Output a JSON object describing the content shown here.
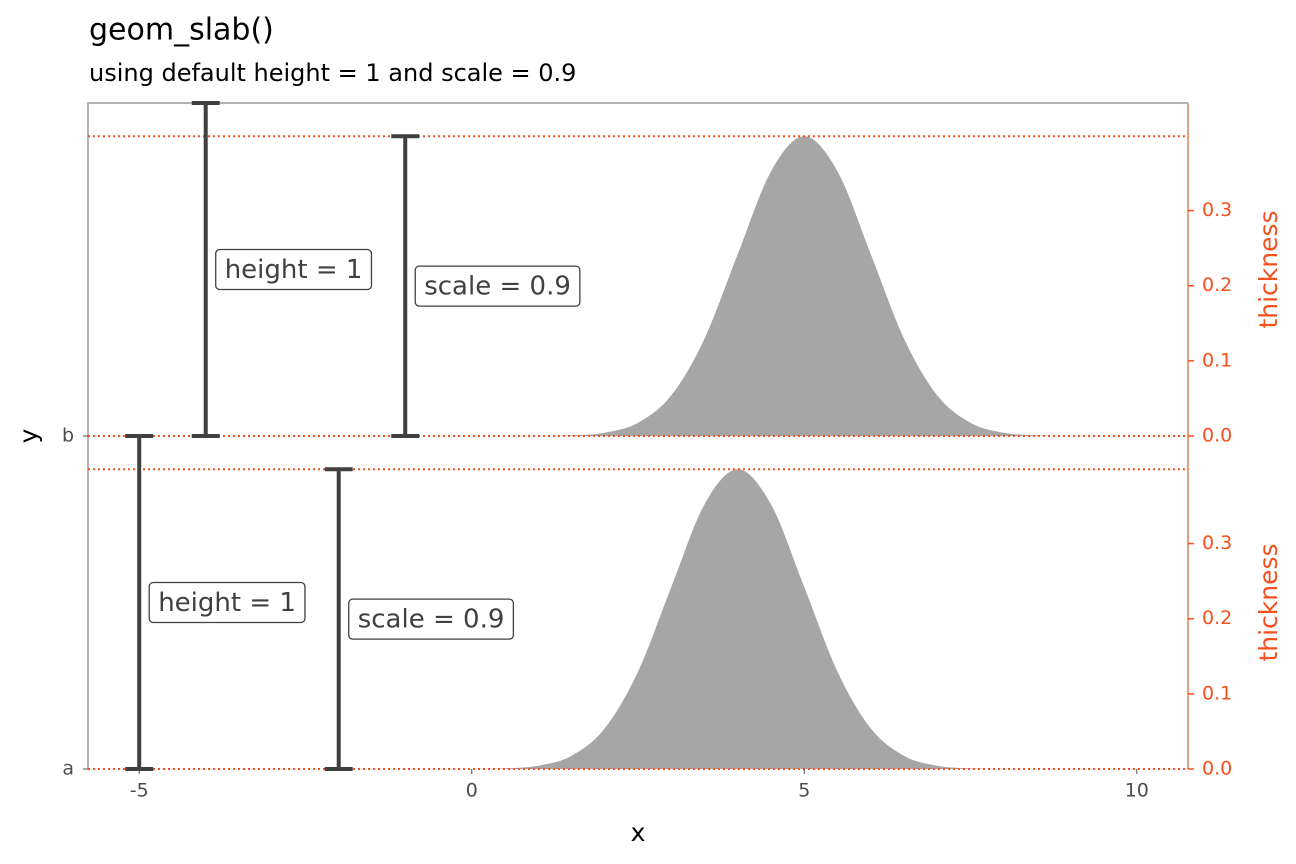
{
  "chart_data": {
    "type": "slab",
    "title": "geom_slab()",
    "subtitle": "using default height = 1 and scale = 0.9",
    "x_label": "x",
    "y_label": "y",
    "y2_label": "thickness",
    "categories": [
      "a",
      "b"
    ],
    "x": [
      0,
      0.5,
      1,
      1.5,
      2,
      2.5,
      3,
      3.5,
      4,
      4.5,
      5,
      5.5,
      6,
      6.5,
      7,
      7.5,
      8,
      8.5,
      9,
      9.5,
      10
    ],
    "series": [
      {
        "color": "#a6a6a6",
        "values": [
          0.0001,
          0.0009,
          0.0044,
          0.0175,
          0.054,
          0.1295,
          0.242,
          0.3521,
          0.3989,
          0.3521,
          0.242,
          0.1295,
          0.054,
          0.0175,
          0.0044,
          0.0009,
          0.0001,
          0,
          0,
          0,
          0
        ]
      },
      {
        "color": "#a6a6a6",
        "values": [
          0,
          0,
          0.0001,
          0.0009,
          0.0044,
          0.0175,
          0.054,
          0.1295,
          0.242,
          0.3521,
          0.3989,
          0.3521,
          0.242,
          0.1295,
          0.054,
          0.0175,
          0.0044,
          0.0009,
          0.0001,
          0,
          0
        ]
      }
    ],
    "xlim": [
      -5.77,
      10.77
    ],
    "xticks": [
      -5,
      0,
      5,
      10
    ],
    "ylim": [
      0,
      2
    ],
    "y2lim": [
      0,
      0.4432
    ],
    "y2ticks": [
      {
        "value": 0,
        "label": "0.0"
      },
      0.1,
      0.2,
      0.3
    ],
    "reference_lines": [
      0,
      0.9,
      1,
      1.9
    ],
    "reference_color": "#f4511e",
    "annotations": [
      {
        "text": "height = 1",
        "x": -4,
        "y0": 1,
        "y1": 2
      },
      {
        "text": "scale = 0.9",
        "x": -1,
        "y0": 1,
        "y1": 1.9
      },
      {
        "text": "height = 1",
        "x": -5,
        "y0": 0,
        "y1": 1
      },
      {
        "text": "scale = 0.9",
        "x": -2,
        "y0": 0,
        "y1": 0.9
      }
    ]
  }
}
